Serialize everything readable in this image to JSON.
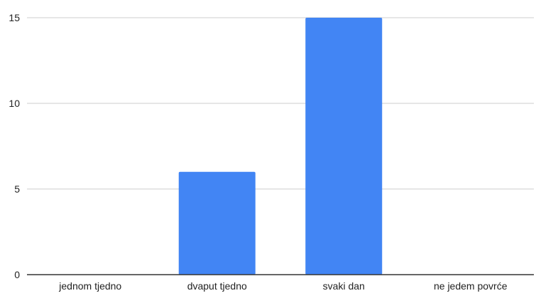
{
  "chart_data": {
    "type": "bar",
    "title": "",
    "xlabel": "",
    "ylabel": "",
    "categories": [
      "jednom tjedno",
      "dvaput tjedno",
      "svaki dan",
      "ne jedem povrće"
    ],
    "values": [
      0,
      6,
      15,
      0
    ],
    "ylim": [
      0,
      15
    ],
    "yticks": [
      0,
      5,
      10,
      15
    ],
    "grid": true,
    "legend": "none",
    "colors": {
      "bar": "#4285f4",
      "grid": "#cccccc",
      "axis": "#333333",
      "text": "#222222"
    }
  }
}
